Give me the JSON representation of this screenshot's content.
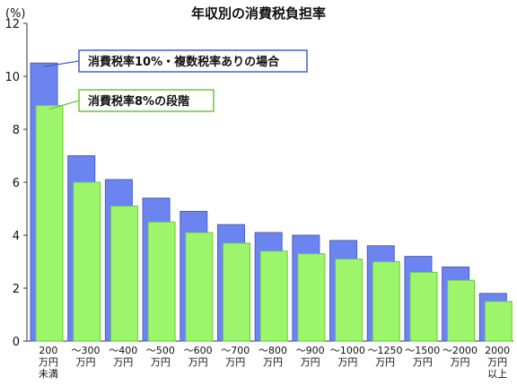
{
  "chart_data": {
    "type": "bar",
    "title": "年収別の消費税負担率",
    "unit_label": "(%)",
    "ylim": [
      0,
      12
    ],
    "yticks": [
      0,
      2,
      4,
      6,
      8,
      10,
      12
    ],
    "categories": [
      [
        "200",
        "万円",
        "未満"
      ],
      [
        "～300",
        "万円"
      ],
      [
        "～400",
        "万円"
      ],
      [
        "～500",
        "万円"
      ],
      [
        "～600",
        "万円"
      ],
      [
        "～700",
        "万円"
      ],
      [
        "～800",
        "万円"
      ],
      [
        "～900",
        "万円"
      ],
      [
        "～1000",
        "万円"
      ],
      [
        "～1250",
        "万円"
      ],
      [
        "～1500",
        "万円"
      ],
      [
        "～2000",
        "万円"
      ],
      [
        "2000",
        "万円",
        "以上"
      ]
    ],
    "series": [
      {
        "name": "消費税率10%・複数税率ありの場合",
        "color": "#6b84f0",
        "border": "#4a5fc8",
        "values": [
          10.5,
          7.0,
          6.1,
          5.4,
          4.9,
          4.4,
          4.1,
          4.0,
          3.8,
          3.6,
          3.2,
          2.8,
          1.8
        ]
      },
      {
        "name": "消費税率8%の段階",
        "color": "#9cf56a",
        "border": "#6cc540",
        "values": [
          8.9,
          6.0,
          5.1,
          4.5,
          4.1,
          3.7,
          3.4,
          3.3,
          3.1,
          3.0,
          2.6,
          2.3,
          1.5
        ]
      }
    ],
    "grid": false,
    "legend_placement": "top-left callouts"
  }
}
